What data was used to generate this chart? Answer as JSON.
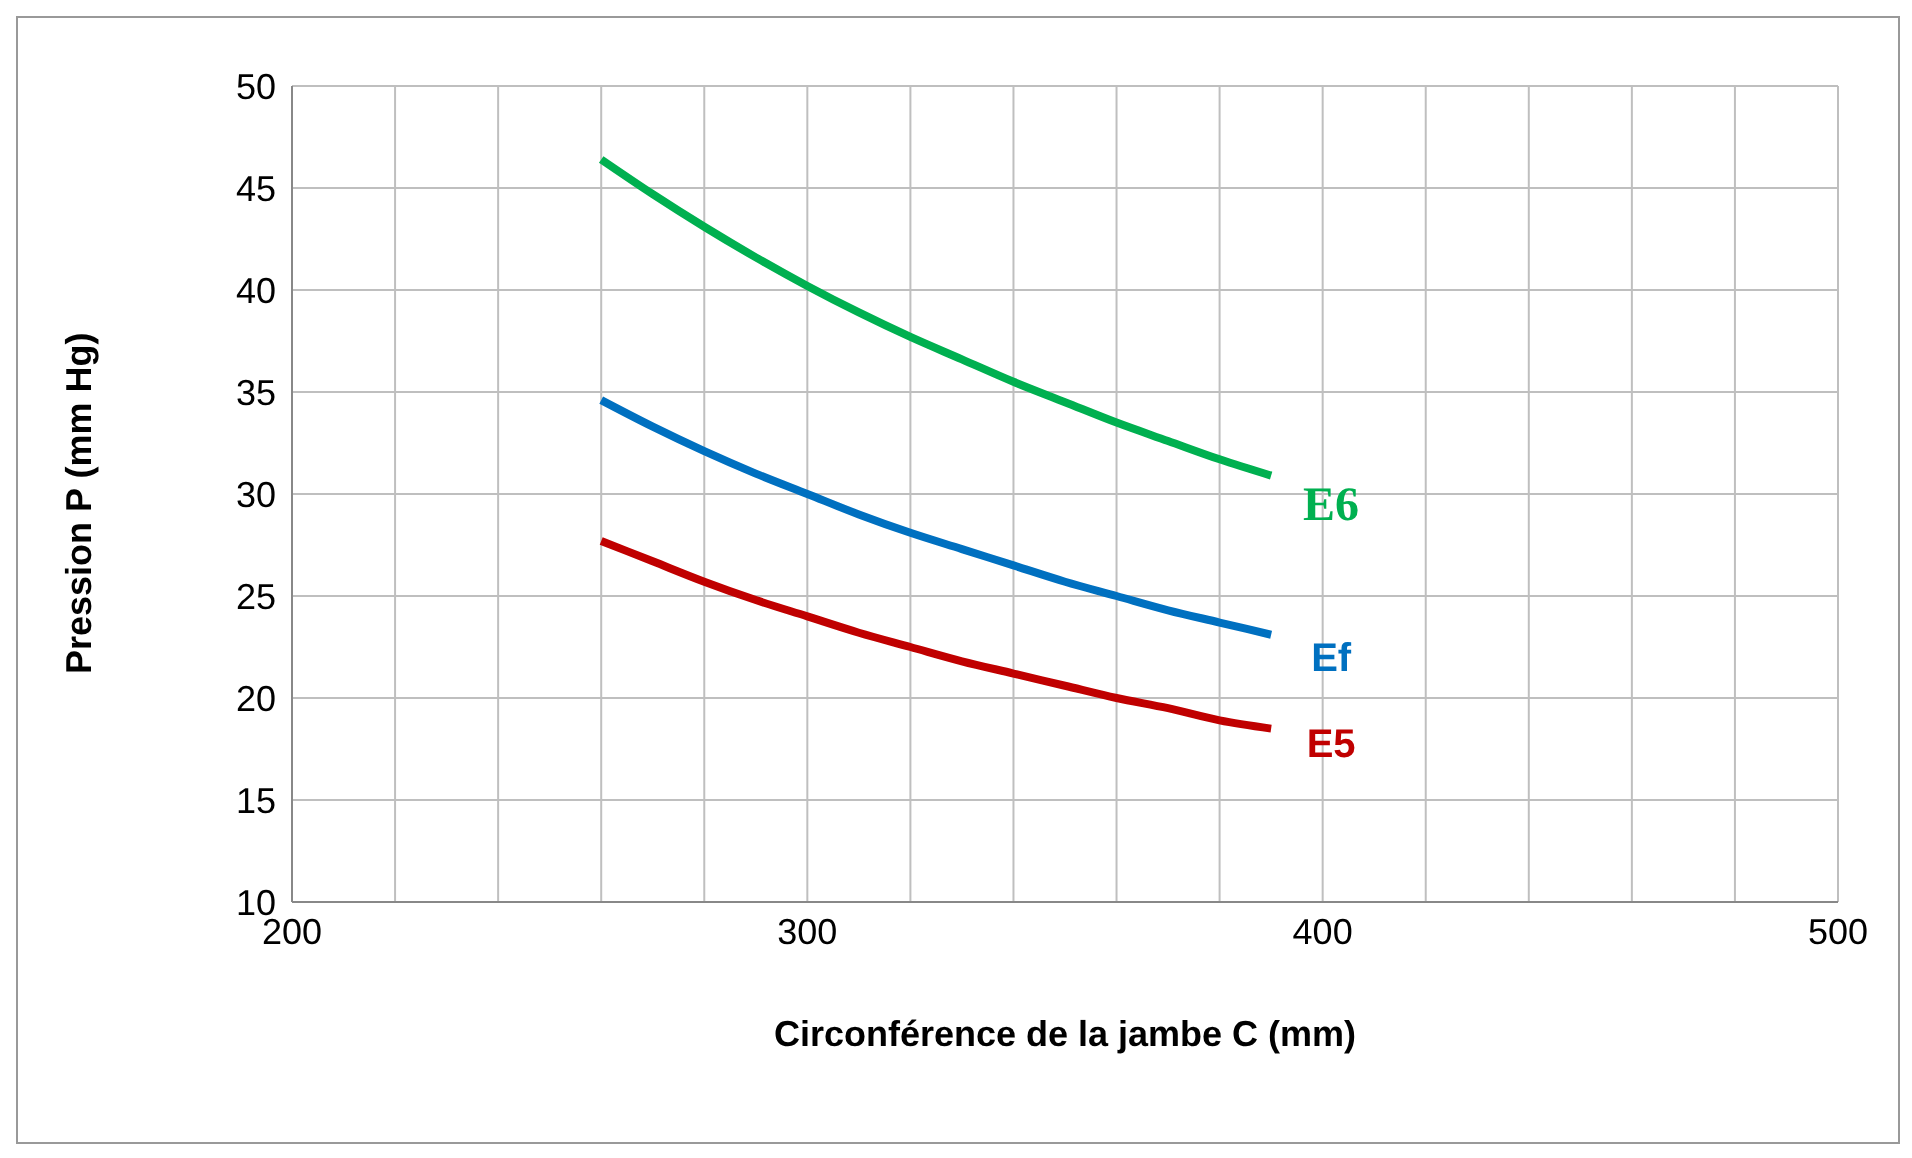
{
  "chart_data": {
    "type": "line",
    "xlabel": "Circonférence de la jambe  C (mm)",
    "ylabel": "Pression P (mm Hg)",
    "x": [
      260,
      270,
      280,
      290,
      300,
      310,
      320,
      330,
      340,
      350,
      360,
      370,
      380,
      390
    ],
    "series": [
      {
        "name": "E6",
        "color": "#00b050",
        "values": [
          46.4,
          44.7,
          43.1,
          41.6,
          40.2,
          38.9,
          37.7,
          36.6,
          35.5,
          34.5,
          33.5,
          32.6,
          31.7,
          30.9
        ]
      },
      {
        "name": "Ef",
        "color": "#0070c0",
        "values": [
          34.6,
          33.3,
          32.1,
          31.0,
          30.0,
          29.0,
          28.1,
          27.3,
          26.5,
          25.7,
          25.0,
          24.3,
          23.7,
          23.1
        ]
      },
      {
        "name": "E5",
        "color": "#c00000",
        "values": [
          27.7,
          26.7,
          25.7,
          24.8,
          24.0,
          23.2,
          22.5,
          21.8,
          21.2,
          20.6,
          20.0,
          19.5,
          18.9,
          18.5
        ]
      }
    ],
    "xlim": [
      200,
      500
    ],
    "xticks": [
      200,
      {
        "value": 220,
        "label": null
      },
      {
        "value": 240,
        "label": null
      },
      {
        "value": 260,
        "label": null
      },
      {
        "value": 280,
        "label": null
      },
      300,
      {
        "value": 320,
        "label": null
      },
      {
        "value": 340,
        "label": null
      },
      {
        "value": 360,
        "label": null
      },
      {
        "value": 380,
        "label": null
      },
      400,
      {
        "value": 420,
        "label": null
      },
      {
        "value": 440,
        "label": null
      },
      {
        "value": 460,
        "label": null
      },
      {
        "value": 480,
        "label": null
      },
      500
    ],
    "ylim": [
      10,
      50
    ],
    "yticks": [
      10,
      15,
      20,
      25,
      30,
      35,
      40,
      45,
      50
    ],
    "grid": true,
    "marker": "none",
    "line_style": "solid"
  }
}
